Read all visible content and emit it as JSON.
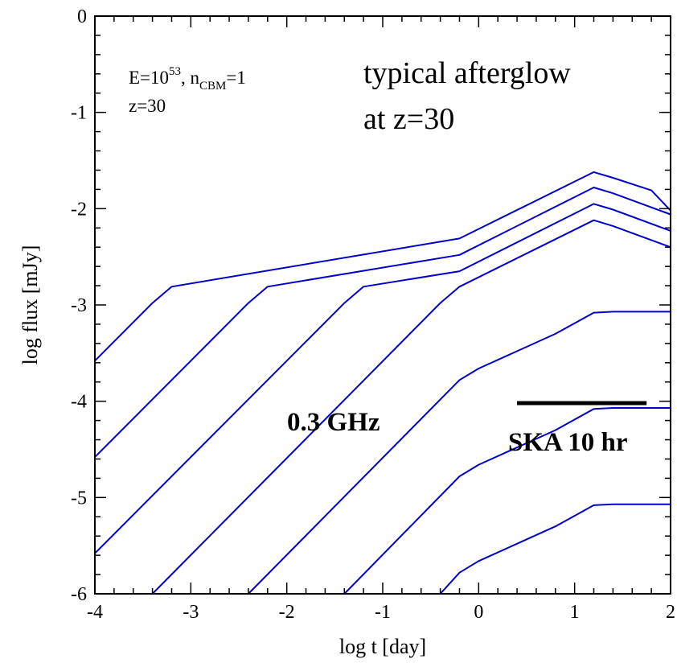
{
  "chart_data": {
    "type": "line",
    "xlabel": "log t [day]",
    "ylabel": "log flux [mJy]",
    "xlim": [
      -4,
      2
    ],
    "ylim": [
      -6,
      0
    ],
    "xticks": [
      "-4",
      "-3",
      "-2",
      "-1",
      "0",
      "1",
      "2"
    ],
    "yticks": [
      "-6",
      "-5",
      "-4",
      "-3",
      "-2",
      "-1",
      "0"
    ],
    "grid": false,
    "line_color": "#0000cc",
    "annotations": {
      "params_line1_base": "E=10",
      "params_line1_exp": "53",
      "params_line1_mid": ", n",
      "params_line1_sub": "CBM",
      "params_line1_end": "=1",
      "params_line2": "z=30",
      "title_line1": "typical afterglow",
      "title_line2": "at z=30",
      "freq_label": "0.3 GHz",
      "ska_label": "SKA 10 hr"
    },
    "ska_limit": {
      "x": [
        0.4,
        1.75
      ],
      "y": -4.02
    },
    "series": [
      {
        "x": [
          -4,
          -3.4,
          -3.2,
          -0.2,
          1.2,
          1.4,
          1.8,
          2.0
        ],
        "y": [
          -3.58,
          -2.98,
          -2.81,
          -2.31,
          -1.62,
          -1.68,
          -1.81,
          -2.02
        ]
      },
      {
        "x": [
          -4,
          -2.4,
          -2.2,
          -0.2,
          1.2,
          1.4,
          2.0
        ],
        "y": [
          -4.58,
          -2.98,
          -2.81,
          -2.48,
          -1.78,
          -1.84,
          -2.06
        ]
      },
      {
        "x": [
          -4,
          -1.4,
          -1.2,
          -0.2,
          1.2,
          1.4,
          2.0
        ],
        "y": [
          -5.58,
          -2.98,
          -2.81,
          -2.65,
          -1.95,
          -2.01,
          -2.23
        ]
      },
      {
        "x": [
          -3.4,
          -0.4,
          -0.2,
          1.2,
          1.4,
          2.0
        ],
        "y": [
          -6.0,
          -2.98,
          -2.81,
          -2.12,
          -2.18,
          -2.4
        ]
      },
      {
        "x": [
          -2.4,
          -0.2,
          0.0,
          0.8,
          1.2,
          1.4,
          2.0
        ],
        "y": [
          -6.0,
          -3.78,
          -3.66,
          -3.3,
          -3.08,
          -3.07,
          -3.07
        ]
      },
      {
        "x": [
          -1.4,
          -0.2,
          0.0,
          0.8,
          1.2,
          1.4,
          2.0
        ],
        "y": [
          -6.0,
          -4.78,
          -4.66,
          -4.3,
          -4.08,
          -4.07,
          -4.07
        ]
      },
      {
        "x": [
          -0.4,
          -0.2,
          0.0,
          0.8,
          1.2,
          1.4,
          2.0
        ],
        "y": [
          -6.0,
          -5.78,
          -5.66,
          -5.3,
          -5.08,
          -5.07,
          -5.07
        ]
      }
    ]
  }
}
